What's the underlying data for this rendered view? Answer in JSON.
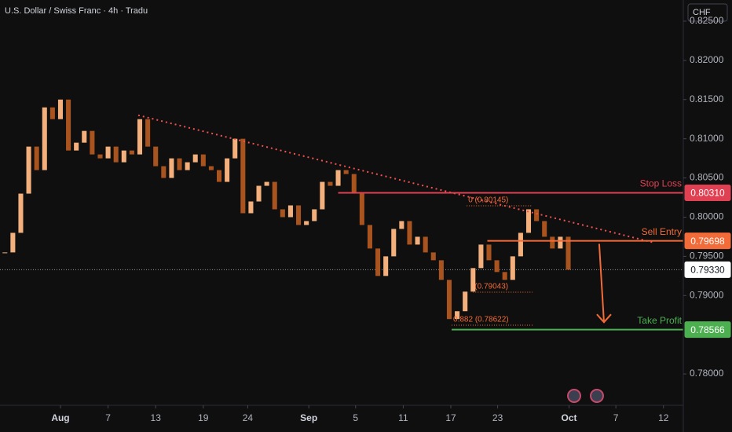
{
  "chart_data": {
    "type": "candlestick",
    "title": "U.S. Dollar / Swiss Franc · 4h · Tradu",
    "currency": "CHF",
    "up_color": "#f3b07c",
    "down_color": "#a9531f",
    "x": [
      -7,
      -6,
      -5,
      -4,
      -3,
      -2,
      -1,
      0,
      1,
      2,
      3,
      4,
      5,
      6,
      7,
      8,
      9,
      10,
      11,
      12,
      13,
      14,
      15,
      16,
      17,
      18,
      19,
      20,
      21,
      22,
      23,
      24,
      25,
      26,
      27,
      28,
      29,
      30,
      31,
      32,
      33,
      34,
      35,
      36,
      37,
      38,
      39,
      40,
      41,
      42,
      43,
      44,
      45,
      46,
      47,
      48,
      49,
      50,
      51,
      52,
      53,
      54,
      55,
      56,
      57,
      58,
      59,
      60,
      61,
      62,
      63,
      64
    ],
    "close": [
      0.7955,
      0.798,
      0.803,
      0.809,
      0.806,
      0.814,
      0.8125,
      0.815,
      0.8085,
      0.8095,
      0.811,
      0.808,
      0.8075,
      0.809,
      0.807,
      0.8085,
      0.808,
      0.8125,
      0.809,
      0.8065,
      0.805,
      0.8075,
      0.806,
      0.807,
      0.808,
      0.8065,
      0.806,
      0.8045,
      0.8075,
      0.81,
      0.8005,
      0.802,
      0.804,
      0.8045,
      0.801,
      0.8,
      0.8015,
      0.799,
      0.7995,
      0.801,
      0.8045,
      0.804,
      0.806,
      0.8055,
      0.803,
      0.799,
      0.796,
      0.7925,
      0.795,
      0.7985,
      0.7995,
      0.7965,
      0.7975,
      0.7955,
      0.7945,
      0.792,
      0.787,
      0.788,
      0.7905,
      0.7935,
      0.7965,
      0.7945,
      0.793,
      0.792,
      0.795,
      0.798,
      0.801,
      0.7995,
      0.7975,
      0.796,
      0.7975,
      0.7933
    ],
    "xlim": [
      -7.62,
      78.5
    ],
    "ylim": [
      0.776,
      0.8277
    ],
    "xticks": [
      {
        "value": 0,
        "label": "Aug"
      },
      {
        "value": 6,
        "label": "7"
      },
      {
        "value": 12,
        "label": "13"
      },
      {
        "value": 18,
        "label": "19"
      },
      {
        "value": 23.6,
        "label": "24"
      },
      {
        "value": 31.3,
        "label": "Sep"
      },
      {
        "value": 37.2,
        "label": "5"
      },
      {
        "value": 43.2,
        "label": "11"
      },
      {
        "value": 49.2,
        "label": "17"
      },
      {
        "value": 55.1,
        "label": "23"
      },
      {
        "value": 64.1,
        "label": "Oct"
      },
      {
        "value": 70,
        "label": "7"
      },
      {
        "value": 76,
        "label": "12"
      }
    ],
    "yticks": [
      {
        "value": 0.825,
        "label": "0.82500"
      },
      {
        "value": 0.82,
        "label": "0.82000"
      },
      {
        "value": 0.815,
        "label": "0.81500"
      },
      {
        "value": 0.81,
        "label": "0.81000"
      },
      {
        "value": 0.805,
        "label": "0.80500"
      },
      {
        "value": 0.8,
        "label": "0.80000"
      },
      {
        "value": 0.795,
        "label": "0.79500"
      },
      {
        "value": 0.79,
        "label": "0.79000"
      },
      {
        "value": 0.78,
        "label": "0.78000"
      }
    ],
    "trendline": {
      "color": "#f2514f",
      "x": [
        9.8,
        74.6
      ],
      "y": [
        0.813,
        0.7968
      ]
    },
    "levels": [
      {
        "name": "Stop Loss",
        "value": 0.8031,
        "label": "0.80310",
        "color": "#e04152",
        "x_start": 35
      },
      {
        "name": "Sell Entry",
        "value": 0.79698,
        "label": "0.79698",
        "color": "#f26b38",
        "x_start": 53.8
      },
      {
        "name": "Take Profit",
        "value": 0.78566,
        "label": "0.78566",
        "color": "#4caf50",
        "x_start": 49.3
      }
    ],
    "current_price": {
      "value": 0.7933,
      "label": "0.79330"
    },
    "fib_levels": [
      {
        "label": "0 (0.80145)",
        "value": 0.80145,
        "x": [
          51.2,
          59.5
        ]
      },
      {
        "label": "(0.79043)",
        "value": 0.79043,
        "x": [
          52,
          59.5
        ]
      },
      {
        "label": "0.882 (0.78622)",
        "value": 0.78622,
        "x": [
          49.3,
          59.5
        ]
      }
    ],
    "arrow": {
      "color": "#f26b38",
      "x": [
        67.9,
        68.5
      ],
      "y": [
        0.7966,
        0.7866
      ]
    }
  }
}
